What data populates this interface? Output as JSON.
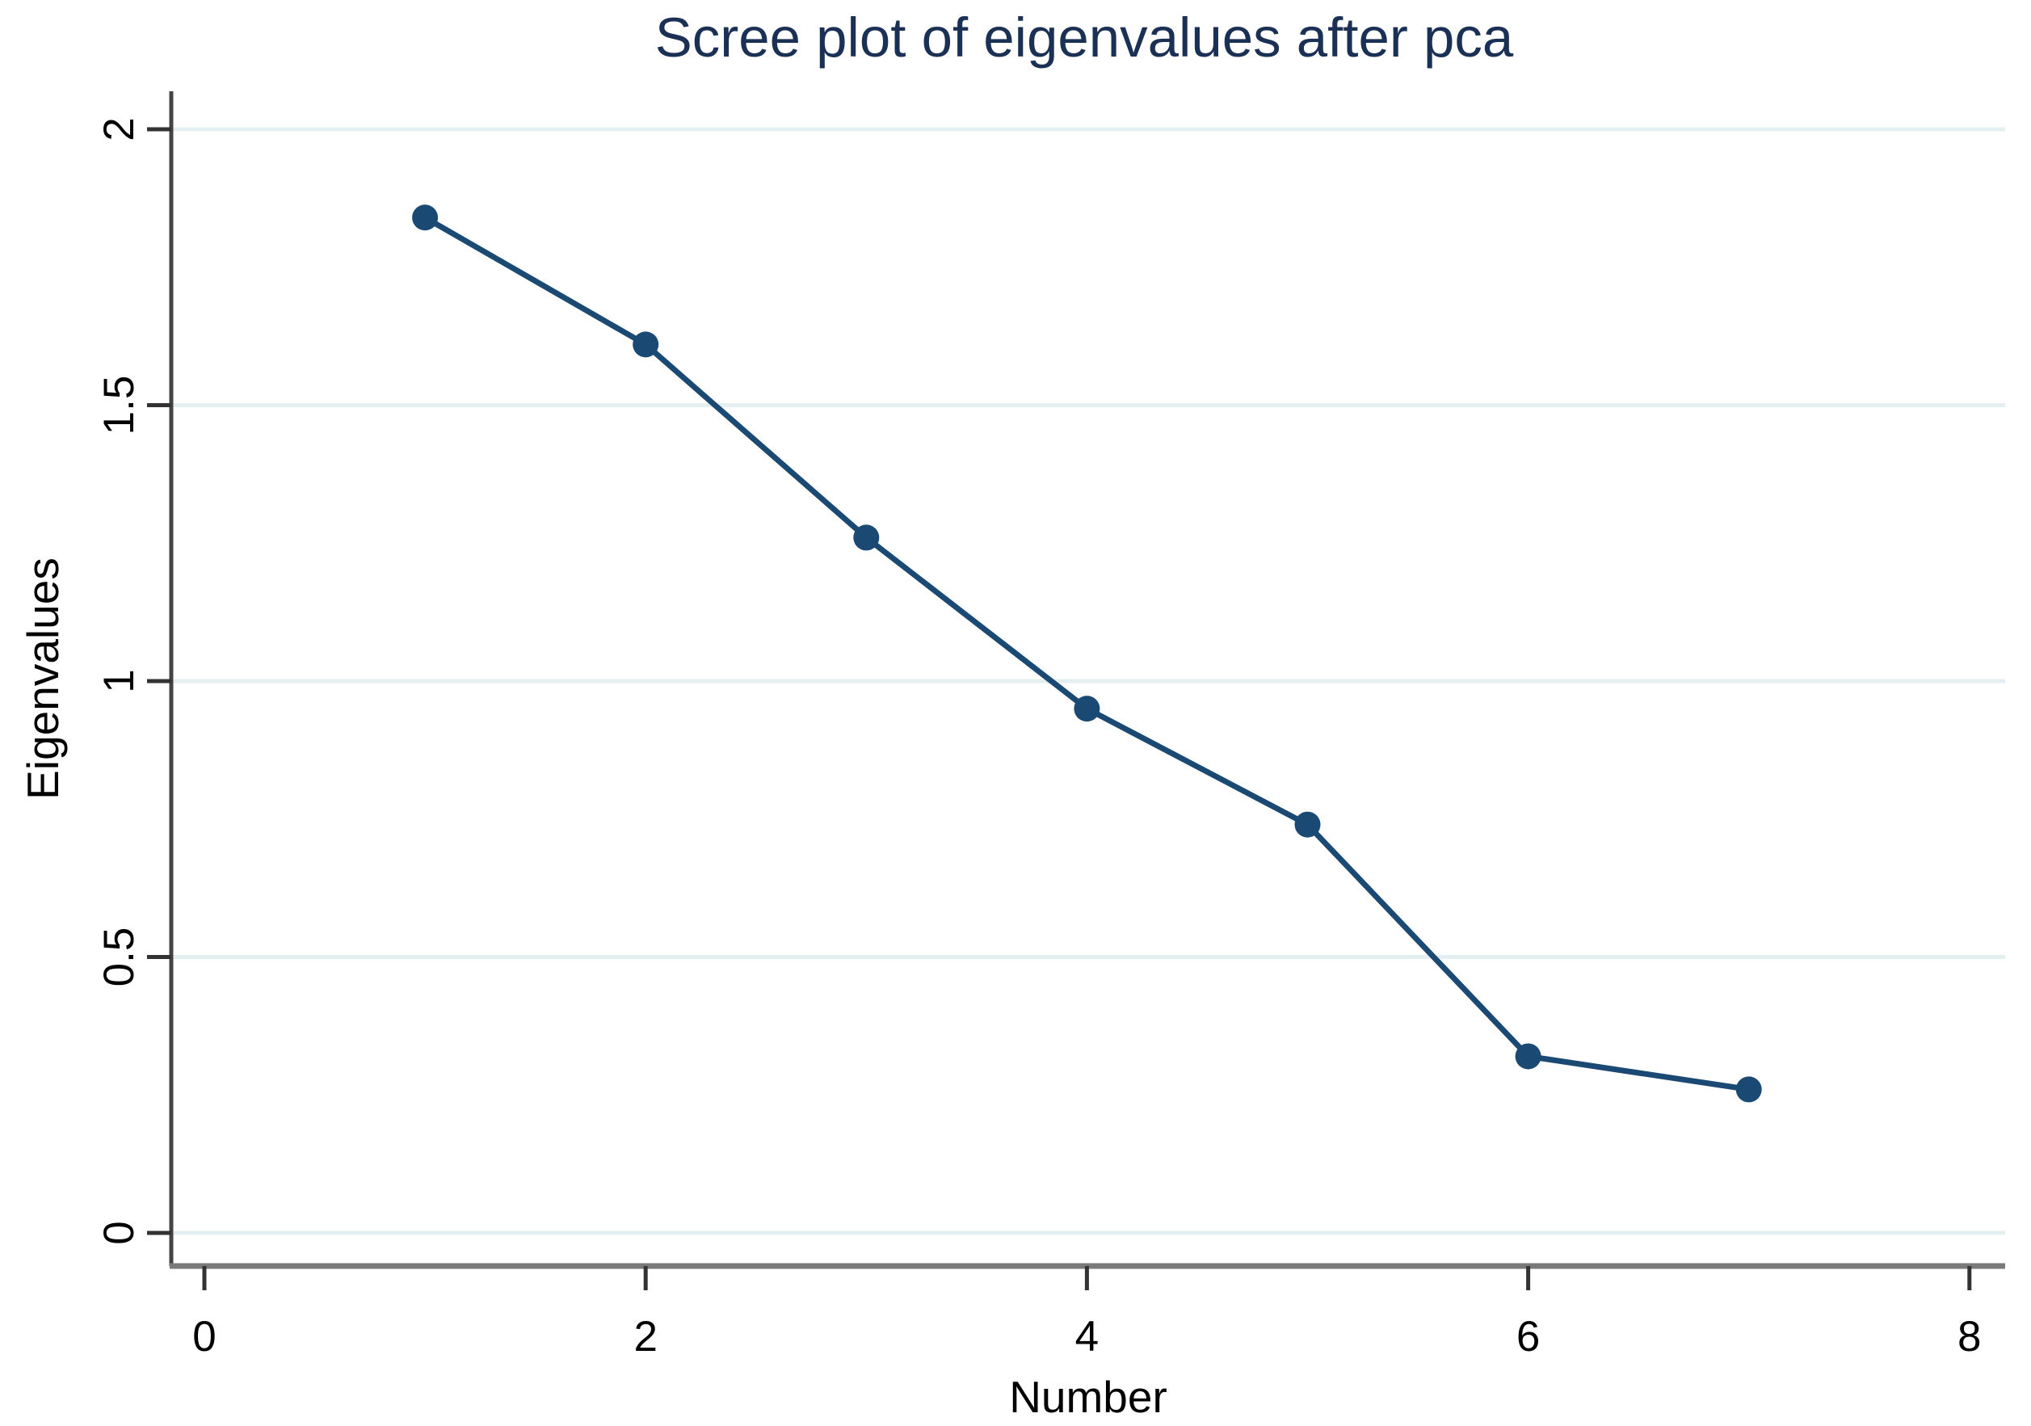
{
  "chart_data": {
    "type": "line",
    "title": "Scree plot of eigenvalues after pca",
    "xlabel": "Number",
    "ylabel": "Eigenvalues",
    "series": [
      {
        "name": "Eigenvalues",
        "x": [
          1,
          2,
          3,
          4,
          5,
          6,
          7
        ],
        "values": [
          1.84,
          1.61,
          1.26,
          0.95,
          0.74,
          0.32,
          0.26
        ]
      }
    ],
    "x_ticks": [
      0,
      2,
      4,
      6,
      8
    ],
    "x_tick_labels": [
      "0",
      "2",
      "4",
      "6",
      "8"
    ],
    "y_ticks": [
      0,
      0.5,
      1,
      1.5,
      2
    ],
    "y_tick_labels": [
      "0",
      "0.5",
      "1",
      "1.5",
      "2"
    ],
    "xlim": [
      -0.15,
      8.15
    ],
    "ylim": [
      -0.06,
      2.06
    ],
    "grid": "horizontal",
    "legend": "none",
    "marker": "circle"
  },
  "colors": {
    "series": "#1a4a73",
    "marker": "#1a4a73",
    "grid": "#e4eff1",
    "title": "#1b3055",
    "y_axis": "#444444",
    "x_axis": "#7a7a7a",
    "tick": "#333333",
    "text": "#000000",
    "background": "#ffffff"
  }
}
